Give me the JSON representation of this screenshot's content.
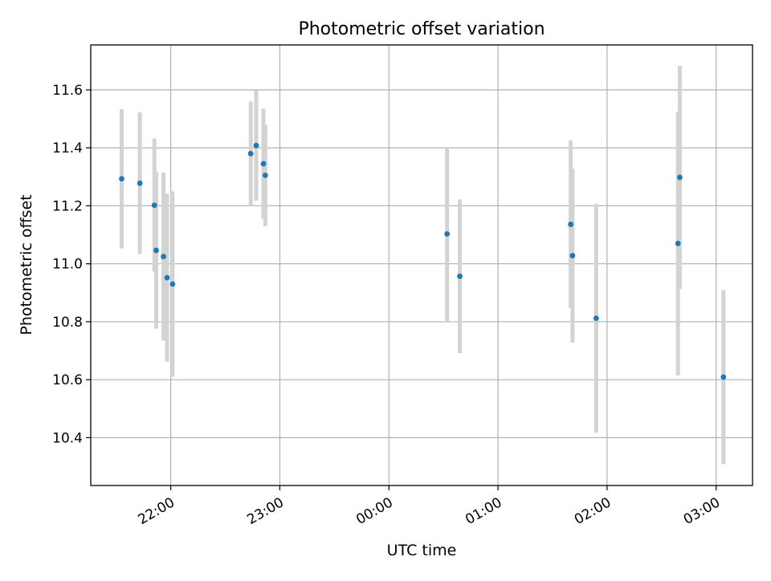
{
  "chart_data": {
    "type": "scatter",
    "title": "Photometric offset variation",
    "xlabel": "UTC time",
    "ylabel": "Photometric offset",
    "x_unit": "UTC time (HH:MM)",
    "xlim": [
      "21:16",
      "03:20"
    ],
    "ylim": [
      10.235,
      11.755
    ],
    "x_ticks": [
      "22:00",
      "23:00",
      "00:00",
      "01:00",
      "02:00",
      "03:00"
    ],
    "y_ticks": [
      10.4,
      10.6,
      10.8,
      11.0,
      11.2,
      11.4,
      11.6
    ],
    "y_tick_labels": [
      "10.4",
      "10.6",
      "10.8",
      "11.0",
      "11.2",
      "11.4",
      "11.6"
    ],
    "grid": true,
    "legend": "none",
    "marker_color": "#1f77b4",
    "errorbar_color": "#d3d3d3",
    "points": [
      {
        "t": "21:33",
        "y": 11.293,
        "yerr": 0.24
      },
      {
        "t": "21:43",
        "y": 11.278,
        "yerr": 0.245
      },
      {
        "t": "21:51",
        "y": 11.202,
        "yerr": 0.23
      },
      {
        "t": "21:52",
        "y": 11.046,
        "yerr": 0.27
      },
      {
        "t": "21:56",
        "y": 11.025,
        "yerr": 0.29
      },
      {
        "t": "21:58",
        "y": 10.952,
        "yerr": 0.29
      },
      {
        "t": "22:01",
        "y": 10.93,
        "yerr": 0.32
      },
      {
        "t": "22:44",
        "y": 11.38,
        "yerr": 0.18
      },
      {
        "t": "22:47",
        "y": 11.408,
        "yerr": 0.19
      },
      {
        "t": "22:51",
        "y": 11.345,
        "yerr": 0.19
      },
      {
        "t": "22:52",
        "y": 11.305,
        "yerr": 0.175
      },
      {
        "t": "00:32",
        "y": 11.103,
        "yerr": 0.3
      },
      {
        "t": "00:39",
        "y": 10.957,
        "yerr": 0.265
      },
      {
        "t": "01:40",
        "y": 11.136,
        "yerr": 0.29
      },
      {
        "t": "01:41",
        "y": 11.028,
        "yerr": 0.3
      },
      {
        "t": "01:54",
        "y": 10.812,
        "yerr": 0.395
      },
      {
        "t": "02:39",
        "y": 11.07,
        "yerr": 0.455
      },
      {
        "t": "02:40",
        "y": 11.298,
        "yerr": 0.385
      },
      {
        "t": "03:04",
        "y": 10.609,
        "yerr": 0.3
      }
    ]
  }
}
